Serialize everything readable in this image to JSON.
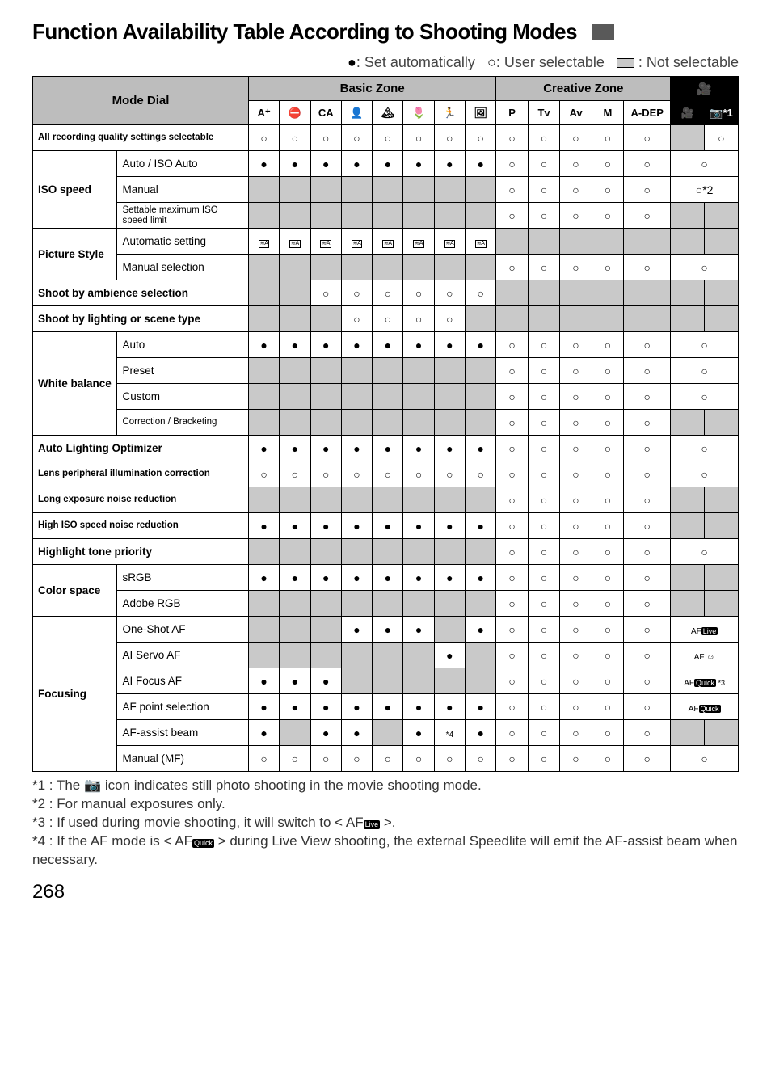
{
  "title": "Function Availability Table According to Shooting Modes",
  "legend": {
    "auto": ": Set automatically",
    "user": ": User selectable",
    "not": ": Not selectable"
  },
  "headers": {
    "modeDial": "Mode Dial",
    "basicZone": "Basic Zone",
    "creativeZone": "Creative Zone",
    "movieIcon": "🎥",
    "basicIcons": [
      "A⁺",
      "⛔",
      "CA",
      "👤",
      "🏔",
      "🌷",
      "🏃",
      "🖼"
    ],
    "creativeIcons": [
      "P",
      "Tv",
      "Av",
      "M",
      "A-DEP"
    ],
    "movieCols": [
      "🎥",
      "📷*1"
    ]
  },
  "rows": [
    {
      "label1": "All recording quality settings selectable",
      "span": 2,
      "bz": [
        "○",
        "○",
        "○",
        "○",
        "○",
        "○",
        "○",
        "○"
      ],
      "cz": [
        "○",
        "○",
        "○",
        "○",
        "○"
      ],
      "mv": [
        "g",
        "○"
      ],
      "small": true
    },
    {
      "group": "ISO speed",
      "label2": "Auto / ISO Auto",
      "bz": [
        "●",
        "●",
        "●",
        "●",
        "●",
        "●",
        "●",
        "●"
      ],
      "cz": [
        "○",
        "○",
        "○",
        "○",
        "○"
      ],
      "mv": [
        "○",
        "",
        "merge"
      ]
    },
    {
      "group": "ISO speed",
      "label2": "Manual",
      "bz": [
        "g",
        "g",
        "g",
        "g",
        "g",
        "g",
        "g",
        "g"
      ],
      "cz": [
        "○",
        "○",
        "○",
        "○",
        "○"
      ],
      "mv": [
        "○*2",
        "",
        "merge"
      ]
    },
    {
      "group": "ISO speed",
      "label2": "Settable maximum ISO speed limit",
      "small": true,
      "bz": [
        "g",
        "g",
        "g",
        "g",
        "g",
        "g",
        "g",
        "g"
      ],
      "cz": [
        "○",
        "○",
        "○",
        "○",
        "○"
      ],
      "mv": [
        "g",
        "g"
      ]
    },
    {
      "group": "Picture Style",
      "label2": "Automatic setting",
      "bz": [
        "ps",
        "ps",
        "ps",
        "ps",
        "ps",
        "ps",
        "ps",
        "ps"
      ],
      "cz": [
        "g",
        "g",
        "g",
        "g",
        "g"
      ],
      "mv": [
        "g",
        "g"
      ]
    },
    {
      "group": "Picture Style",
      "label2": "Manual selection",
      "bz": [
        "g",
        "g",
        "g",
        "g",
        "g",
        "g",
        "g",
        "g"
      ],
      "cz": [
        "○",
        "○",
        "○",
        "○",
        "○"
      ],
      "mv": [
        "○",
        "",
        "merge"
      ]
    },
    {
      "label1": "Shoot by ambience selection",
      "span": 2,
      "bz": [
        "g",
        "g",
        "○",
        "○",
        "○",
        "○",
        "○",
        "○"
      ],
      "cz": [
        "g",
        "g",
        "g",
        "g",
        "g"
      ],
      "mv": [
        "g",
        "g"
      ]
    },
    {
      "label1": "Shoot by lighting or scene type",
      "span": 2,
      "bz": [
        "g",
        "g",
        "g",
        "○",
        "○",
        "○",
        "○",
        "g"
      ],
      "cz": [
        "g",
        "g",
        "g",
        "g",
        "g"
      ],
      "mv": [
        "g",
        "g"
      ]
    },
    {
      "group": "White balance",
      "label2": "Auto",
      "bz": [
        "●",
        "●",
        "●",
        "●",
        "●",
        "●",
        "●",
        "●"
      ],
      "cz": [
        "○",
        "○",
        "○",
        "○",
        "○"
      ],
      "mv": [
        "○",
        "",
        "merge"
      ]
    },
    {
      "group": "White balance",
      "label2": "Preset",
      "bz": [
        "g",
        "g",
        "g",
        "g",
        "g",
        "g",
        "g",
        "g"
      ],
      "cz": [
        "○",
        "○",
        "○",
        "○",
        "○"
      ],
      "mv": [
        "○",
        "",
        "merge"
      ]
    },
    {
      "group": "White balance",
      "label2": "Custom",
      "bz": [
        "g",
        "g",
        "g",
        "g",
        "g",
        "g",
        "g",
        "g"
      ],
      "cz": [
        "○",
        "○",
        "○",
        "○",
        "○"
      ],
      "mv": [
        "○",
        "",
        "merge"
      ]
    },
    {
      "group": "White balance",
      "label2": "Correction / Bracketing",
      "small": true,
      "bz": [
        "g",
        "g",
        "g",
        "g",
        "g",
        "g",
        "g",
        "g"
      ],
      "cz": [
        "○",
        "○",
        "○",
        "○",
        "○"
      ],
      "mv": [
        "g",
        "g"
      ]
    },
    {
      "label1": "Auto Lighting Optimizer",
      "span": 2,
      "bz": [
        "●",
        "●",
        "●",
        "●",
        "●",
        "●",
        "●",
        "●"
      ],
      "cz": [
        "○",
        "○",
        "○",
        "○",
        "○"
      ],
      "mv": [
        "○",
        "",
        "merge"
      ]
    },
    {
      "label1": "Lens peripheral illumination correction",
      "span": 2,
      "small": true,
      "bz": [
        "○",
        "○",
        "○",
        "○",
        "○",
        "○",
        "○",
        "○"
      ],
      "cz": [
        "○",
        "○",
        "○",
        "○",
        "○"
      ],
      "mv": [
        "○",
        "",
        "merge"
      ]
    },
    {
      "label1": "Long exposure noise reduction",
      "span": 2,
      "small": true,
      "bz": [
        "g",
        "g",
        "g",
        "g",
        "g",
        "g",
        "g",
        "g"
      ],
      "cz": [
        "○",
        "○",
        "○",
        "○",
        "○"
      ],
      "mv": [
        "g",
        "g"
      ]
    },
    {
      "label1": "High ISO speed noise reduction",
      "span": 2,
      "small": true,
      "bz": [
        "●",
        "●",
        "●",
        "●",
        "●",
        "●",
        "●",
        "●"
      ],
      "cz": [
        "○",
        "○",
        "○",
        "○",
        "○"
      ],
      "mv": [
        "g",
        "g"
      ]
    },
    {
      "label1": "Highlight tone priority",
      "span": 2,
      "bz": [
        "g",
        "g",
        "g",
        "g",
        "g",
        "g",
        "g",
        "g"
      ],
      "cz": [
        "○",
        "○",
        "○",
        "○",
        "○"
      ],
      "mv": [
        "○",
        "",
        "merge"
      ]
    },
    {
      "group": "Color space",
      "label2": "sRGB",
      "bz": [
        "●",
        "●",
        "●",
        "●",
        "●",
        "●",
        "●",
        "●"
      ],
      "cz": [
        "○",
        "○",
        "○",
        "○",
        "○"
      ],
      "mv": [
        "g",
        "g"
      ]
    },
    {
      "group": "Color space",
      "label2": "Adobe RGB",
      "bz": [
        "g",
        "g",
        "g",
        "g",
        "g",
        "g",
        "g",
        "g"
      ],
      "cz": [
        "○",
        "○",
        "○",
        "○",
        "○"
      ],
      "mv": [
        "g",
        "g"
      ]
    },
    {
      "group": "Focusing",
      "label2": "One-Shot AF",
      "bz": [
        "g",
        "g",
        "g",
        "●",
        "●",
        "●",
        "g",
        "●"
      ],
      "cz": [
        "○",
        "○",
        "○",
        "○",
        "○"
      ],
      "mv": [
        "afLive",
        "",
        "merge"
      ]
    },
    {
      "group": "Focusing",
      "label2": "AI Servo AF",
      "bz": [
        "g",
        "g",
        "g",
        "g",
        "g",
        "g",
        "●",
        "g"
      ],
      "cz": [
        "○",
        "○",
        "○",
        "○",
        "○"
      ],
      "mv": [
        "afFace",
        "",
        "merge"
      ]
    },
    {
      "group": "Focusing",
      "label2": "AI Focus AF",
      "bz": [
        "●",
        "●",
        "●",
        "g",
        "g",
        "g",
        "g",
        "g"
      ],
      "cz": [
        "○",
        "○",
        "○",
        "○",
        "○"
      ],
      "mv": [
        "afQuick3",
        "",
        "merge"
      ]
    },
    {
      "group": "Focusing",
      "label2": "AF point selection",
      "bz": [
        "●",
        "●",
        "●",
        "●",
        "●",
        "●",
        "●",
        "●"
      ],
      "cz": [
        "○",
        "○",
        "○",
        "○",
        "○"
      ],
      "mv": [
        "afQuick",
        "",
        "merge"
      ]
    },
    {
      "group": "Focusing",
      "label2": "AF-assist beam",
      "bz": [
        "●",
        "g",
        "●",
        "●",
        "g",
        "●",
        "*4",
        "●"
      ],
      "cz": [
        "○",
        "○",
        "○",
        "○",
        "○"
      ],
      "mv": [
        "g",
        "g"
      ]
    },
    {
      "group": "Focusing",
      "label2": "Manual (MF)",
      "bz": [
        "○",
        "○",
        "○",
        "○",
        "○",
        "○",
        "○",
        "○"
      ],
      "cz": [
        "○",
        "○",
        "○",
        "○",
        "○"
      ],
      "mv": [
        "○",
        "",
        "merge"
      ]
    }
  ],
  "groups": {
    "ISO speed": 3,
    "Picture Style": 2,
    "White balance": 4,
    "Color space": 2,
    "Focusing": 6
  },
  "footnotes": [
    "*1 : The 📷 icon indicates still photo shooting in the movie shooting mode.",
    "*2 : For manual exposures only.",
    "*3 : If used during movie shooting, it will switch to < AF[Live] >.",
    "*4 : If the AF mode is < AF[Quick] > during Live View shooting, the external Speedlite will emit the AF-assist beam when necessary."
  ],
  "pagenum": "268"
}
